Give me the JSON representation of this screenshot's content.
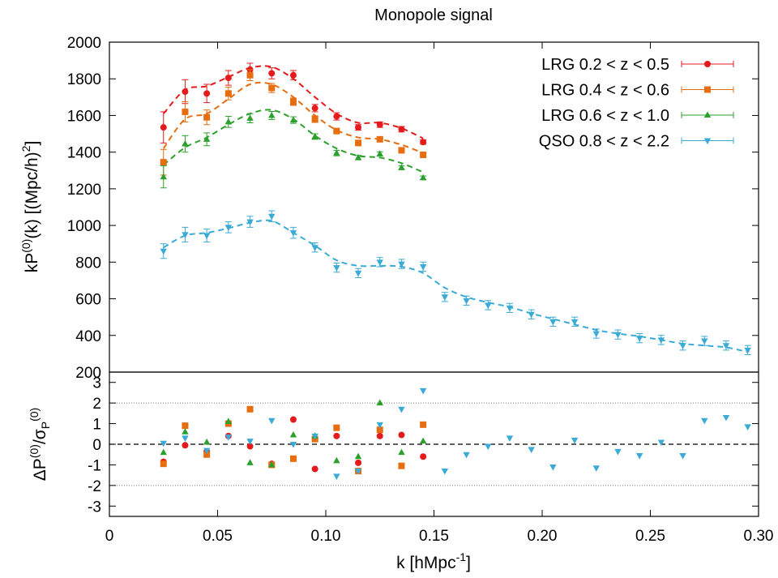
{
  "chart_data": [
    {
      "panel": "top",
      "type": "scatter",
      "title": "Monopole signal",
      "ylabel": "kP(0)(k) [(Mpc/h)2]",
      "ylim": [
        200,
        2000
      ],
      "yticks": [
        200,
        400,
        600,
        800,
        1000,
        1200,
        1400,
        1600,
        1800,
        2000
      ],
      "xlim": [
        0,
        0.3
      ],
      "grid": false,
      "legend_position": "top-right",
      "series": [
        {
          "name": "LRG 0.2 < z < 0.5",
          "color": "#e41a1c",
          "marker": "circle",
          "x": [
            0.025,
            0.035,
            0.045,
            0.055,
            0.065,
            0.075,
            0.085,
            0.095,
            0.105,
            0.115,
            0.125,
            0.135,
            0.145
          ],
          "y": [
            1535,
            1730,
            1720,
            1805,
            1850,
            1830,
            1820,
            1640,
            1595,
            1535,
            1550,
            1525,
            1455
          ],
          "err": [
            85,
            65,
            50,
            40,
            35,
            30,
            25,
            20,
            20,
            15,
            15,
            15,
            12
          ],
          "model_x": [
            0.025,
            0.035,
            0.045,
            0.055,
            0.065,
            0.075,
            0.085,
            0.095,
            0.105,
            0.115,
            0.125,
            0.135,
            0.145
          ],
          "model_y": [
            1610,
            1740,
            1760,
            1810,
            1860,
            1865,
            1800,
            1700,
            1610,
            1560,
            1560,
            1530,
            1475
          ]
        },
        {
          "name": "LRG 0.4 < z < 0.6",
          "color": "#e66d10",
          "marker": "square",
          "x": [
            0.025,
            0.035,
            0.045,
            0.055,
            0.065,
            0.075,
            0.085,
            0.095,
            0.105,
            0.115,
            0.125,
            0.135,
            0.145
          ],
          "y": [
            1345,
            1620,
            1590,
            1720,
            1820,
            1750,
            1675,
            1580,
            1515,
            1450,
            1470,
            1410,
            1385
          ],
          "err": [
            70,
            55,
            40,
            35,
            30,
            25,
            20,
            18,
            15,
            15,
            12,
            12,
            10
          ],
          "model_x": [
            0.025,
            0.035,
            0.045,
            0.055,
            0.065,
            0.075,
            0.085,
            0.095,
            0.105,
            0.115,
            0.125,
            0.135,
            0.145
          ],
          "model_y": [
            1420,
            1580,
            1610,
            1690,
            1770,
            1770,
            1700,
            1600,
            1520,
            1480,
            1470,
            1440,
            1395
          ]
        },
        {
          "name": "LRG 0.6 < z < 1.0",
          "color": "#2ca02c",
          "marker": "triangle",
          "x": [
            0.025,
            0.035,
            0.045,
            0.055,
            0.065,
            0.075,
            0.085,
            0.095,
            0.105,
            0.115,
            0.125,
            0.135,
            0.145
          ],
          "y": [
            1265,
            1445,
            1470,
            1565,
            1585,
            1600,
            1575,
            1485,
            1395,
            1370,
            1390,
            1315,
            1260
          ],
          "err": [
            60,
            45,
            35,
            30,
            25,
            22,
            18,
            15,
            15,
            12,
            12,
            10,
            10
          ],
          "model_x": [
            0.025,
            0.035,
            0.045,
            0.055,
            0.065,
            0.075,
            0.085,
            0.095,
            0.105,
            0.115,
            0.125,
            0.135,
            0.145
          ],
          "model_y": [
            1330,
            1425,
            1480,
            1550,
            1610,
            1630,
            1580,
            1490,
            1420,
            1380,
            1370,
            1340,
            1290
          ]
        },
        {
          "name": "QSO 0.8 < z < 2.2",
          "color": "#3aaad6",
          "marker": "triangle-down",
          "x": [
            0.025,
            0.035,
            0.045,
            0.055,
            0.065,
            0.075,
            0.085,
            0.095,
            0.105,
            0.115,
            0.125,
            0.135,
            0.145,
            0.155,
            0.165,
            0.175,
            0.185,
            0.195,
            0.205,
            0.215,
            0.225,
            0.235,
            0.245,
            0.255,
            0.265,
            0.275,
            0.285,
            0.295
          ],
          "y": [
            860,
            950,
            945,
            990,
            1020,
            1050,
            960,
            880,
            770,
            740,
            800,
            790,
            775,
            610,
            590,
            565,
            550,
            515,
            475,
            475,
            410,
            405,
            385,
            375,
            345,
            370,
            345,
            320
          ],
          "err": [
            40,
            40,
            35,
            30,
            30,
            30,
            30,
            25,
            25,
            25,
            25,
            25,
            25,
            25,
            25,
            25,
            25,
            25,
            25,
            25,
            25,
            25,
            25,
            25,
            25,
            25,
            25,
            25
          ],
          "model_x": [
            0.025,
            0.035,
            0.045,
            0.055,
            0.065,
            0.075,
            0.085,
            0.095,
            0.105,
            0.115,
            0.125,
            0.135,
            0.145,
            0.155,
            0.165,
            0.175,
            0.185,
            0.195,
            0.205,
            0.215,
            0.225,
            0.235,
            0.245,
            0.255,
            0.265,
            0.275,
            0.285,
            0.295
          ],
          "model_y": [
            880,
            945,
            960,
            985,
            1015,
            1025,
            960,
            890,
            810,
            780,
            780,
            775,
            740,
            660,
            610,
            580,
            555,
            520,
            490,
            460,
            430,
            410,
            395,
            375,
            355,
            345,
            335,
            310
          ]
        }
      ]
    },
    {
      "panel": "bottom",
      "type": "scatter",
      "ylabel": "ΔP(0)/σP(0)",
      "xlabel": "k [hMpc-1]",
      "xlim": [
        0,
        0.3
      ],
      "xticks": [
        "0",
        "0.05",
        "0.10",
        "0.15",
        "0.20",
        "0.25",
        "0.30"
      ],
      "ylim": [
        -3.5,
        3.5
      ],
      "yticks": [
        -3,
        -2,
        -1,
        0,
        1,
        2,
        3
      ],
      "reference_lines": {
        "dashed": 0,
        "dotted": [
          -2,
          2
        ]
      },
      "series": [
        {
          "name": "LRG 0.2 < z < 0.5",
          "x": [
            0.025,
            0.035,
            0.045,
            0.055,
            0.065,
            0.075,
            0.085,
            0.095,
            0.105,
            0.115,
            0.125,
            0.135,
            0.145
          ],
          "y": [
            -0.85,
            -0.05,
            -0.35,
            0.4,
            -0.1,
            -0.95,
            1.2,
            -1.2,
            0.4,
            -0.9,
            0.4,
            0.45,
            -0.6
          ]
        },
        {
          "name": "LRG 0.4 < z < 0.6",
          "x": [
            0.025,
            0.035,
            0.045,
            0.055,
            0.065,
            0.075,
            0.085,
            0.095,
            0.105,
            0.115,
            0.125,
            0.135,
            0.145
          ],
          "y": [
            -0.95,
            0.9,
            -0.5,
            1.0,
            1.7,
            -1.0,
            -0.7,
            0.25,
            0.8,
            -1.3,
            0.7,
            -1.05,
            0.95
          ]
        },
        {
          "name": "LRG 0.6 < z < 1.0",
          "x": [
            0.025,
            0.035,
            0.045,
            0.055,
            0.065,
            0.075,
            0.085,
            0.095,
            0.105,
            0.115,
            0.125,
            0.135,
            0.145
          ],
          "y": [
            -0.4,
            0.6,
            0.1,
            1.1,
            -0.9,
            -1.0,
            0.45,
            0.4,
            -0.8,
            -0.6,
            2.0,
            -0.4,
            0.15
          ]
        },
        {
          "name": "QSO 0.8 < z < 2.2",
          "x": [
            0.025,
            0.035,
            0.045,
            0.055,
            0.065,
            0.075,
            0.085,
            0.095,
            0.105,
            0.115,
            0.125,
            0.135,
            0.145,
            0.155,
            0.165,
            0.175,
            0.185,
            0.195,
            0.205,
            0.215,
            0.225,
            0.235,
            0.245,
            0.255,
            0.265,
            0.275,
            0.285,
            0.295
          ],
          "y": [
            0.05,
            0.3,
            -0.3,
            0.35,
            0.15,
            1.15,
            0.0,
            0.4,
            -1.55,
            -1.3,
            0.95,
            1.7,
            2.6,
            -1.3,
            -0.5,
            -0.1,
            0.3,
            -0.25,
            -1.1,
            0.2,
            -1.15,
            -0.35,
            -0.55,
            0.1,
            -0.55,
            1.15,
            1.3,
            0.85
          ]
        }
      ]
    }
  ],
  "labels": {
    "title": "Monopole signal",
    "ylabel_top_pre": "kP",
    "ylabel_top_sup": "(0)",
    "ylabel_top_mid": "(k) [(Mpc/h)",
    "ylabel_top_sup2": "2",
    "ylabel_top_post": "]",
    "ylabel_bottom_pre": "ΔP",
    "ylabel_bottom_sup": "(0)",
    "ylabel_bottom_mid": "/σ",
    "ylabel_bottom_sub": "P",
    "ylabel_bottom_sup2": "(0)",
    "xlabel_pre": "k [hMpc",
    "xlabel_sup": "-1",
    "xlabel_post": "]"
  }
}
